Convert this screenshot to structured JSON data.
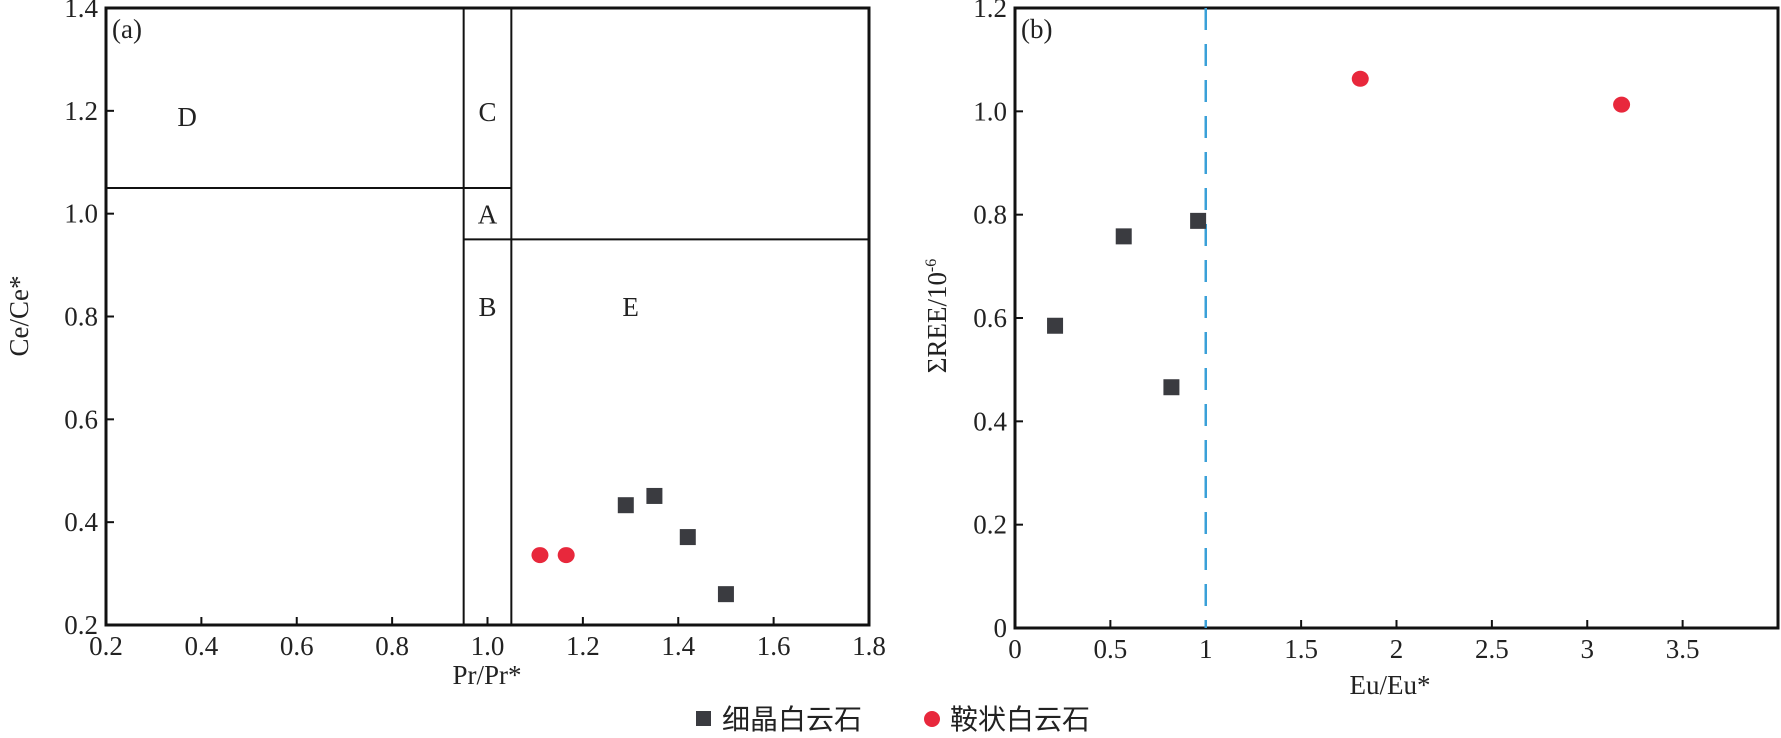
{
  "colors": {
    "fine": "#3a3b40",
    "saddle": "#e8283c",
    "ref_line": "#3aa0d8",
    "axis": "#111111"
  },
  "legend": {
    "fine_label": "细晶白云石",
    "saddle_label": "鞍状白云石"
  },
  "chart_data": [
    {
      "type": "scatter",
      "panel_label": "(a)",
      "xlabel": "Pr/Pr*",
      "ylabel": "Ce/Ce*",
      "xlim": [
        0.2,
        1.8
      ],
      "ylim": [
        0.2,
        1.4
      ],
      "xticks": [
        "0.2",
        "0.4",
        "0.6",
        "0.8",
        "1.0",
        "1.2",
        "1.4",
        "1.6",
        "1.8"
      ],
      "yticks": [
        "0.2",
        "0.4",
        "0.6",
        "0.8",
        "1.0",
        "1.2",
        "1.4"
      ],
      "regions": [
        {
          "label": "A",
          "x": 1.0,
          "y": 1.0
        },
        {
          "label": "B",
          "x": 1.0,
          "y": 0.82
        },
        {
          "label": "C",
          "x": 1.0,
          "y": 1.2
        },
        {
          "label": "D",
          "x": 0.37,
          "y": 1.19
        },
        {
          "label": "E",
          "x": 1.3,
          "y": 0.82
        }
      ],
      "boundaries": {
        "x_lines": [
          0.95,
          1.05
        ],
        "y_line_left": 1.05,
        "y_line_right": 0.95
      },
      "series": [
        {
          "name": "细晶白云石",
          "marker": "square",
          "points": [
            [
              1.29,
              0.433
            ],
            [
              1.35,
              0.451
            ],
            [
              1.42,
              0.371
            ],
            [
              1.5,
              0.26
            ]
          ]
        },
        {
          "name": "鞍状白云石",
          "marker": "circle",
          "points": [
            [
              1.11,
              0.336
            ],
            [
              1.165,
              0.336
            ]
          ]
        }
      ]
    },
    {
      "type": "scatter",
      "panel_label": "(b)",
      "xlabel": "Eu/Eu*",
      "ylabel": "ΣREE/10",
      "ylabel_sup": "-6",
      "xlim": [
        0,
        4.0
      ],
      "ylim": [
        0,
        1.2
      ],
      "xticks": [
        "0",
        "0.5",
        "1",
        "1.5",
        "2",
        "2.5",
        "3",
        "3.5"
      ],
      "yticks": [
        "0",
        "0.2",
        "0.4",
        "0.6",
        "0.8",
        "1.0",
        "1.2"
      ],
      "reference_line_x": 1.0,
      "series": [
        {
          "name": "细晶白云石",
          "marker": "square",
          "points": [
            [
              0.21,
              0.585
            ],
            [
              0.57,
              0.758
            ],
            [
              0.82,
              0.466
            ],
            [
              0.96,
              0.788
            ]
          ]
        },
        {
          "name": "鞍状白云石",
          "marker": "circle",
          "points": [
            [
              1.81,
              1.063
            ],
            [
              3.18,
              1.013
            ]
          ]
        }
      ]
    }
  ]
}
